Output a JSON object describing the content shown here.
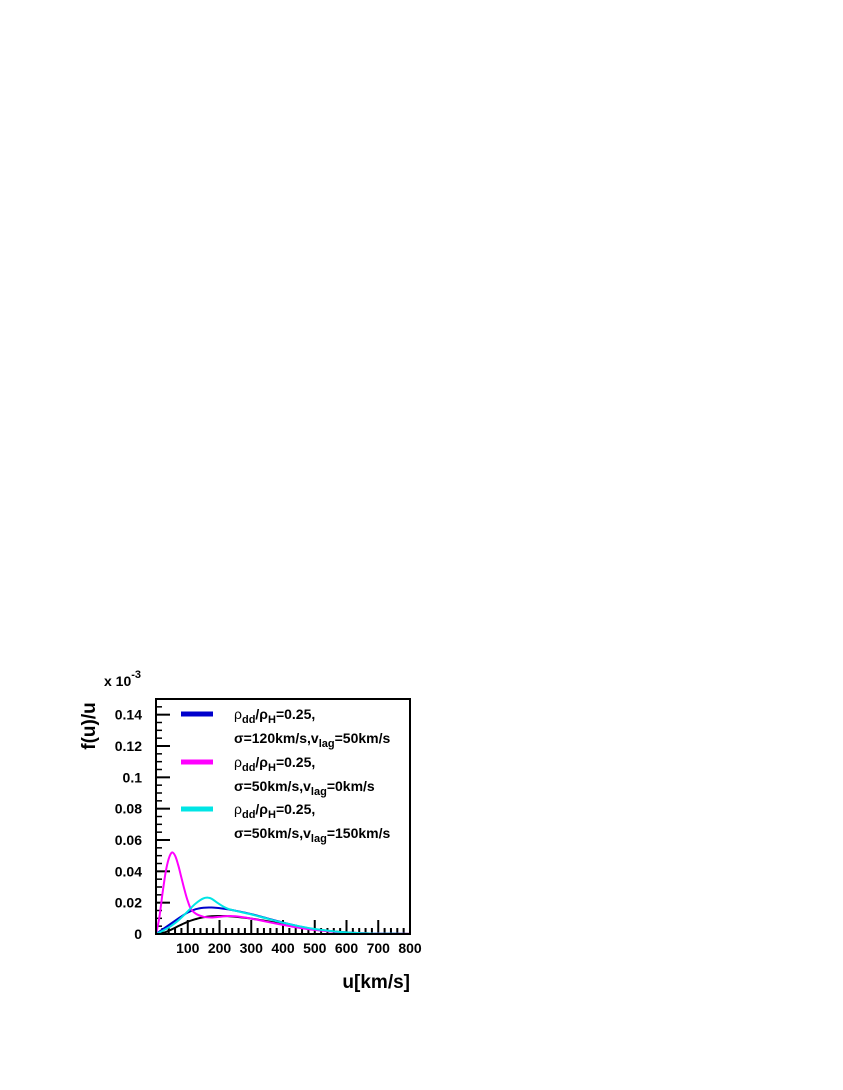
{
  "chart_data": {
    "type": "line",
    "title": "",
    "xlabel": "u[km/s]",
    "ylabel": "f(u)/u",
    "y_multiplier": "x 10",
    "y_multiplier_exp": "-3",
    "xlim": [
      0,
      800
    ],
    "ylim": [
      0,
      0.15
    ],
    "grid": false,
    "legend_position": "top",
    "x_ticks": [
      100,
      200,
      300,
      400,
      500,
      600,
      700,
      800
    ],
    "y_ticks": [
      0,
      0.02,
      0.04,
      0.06,
      0.08,
      0.1,
      0.12,
      0.14
    ],
    "y_tick_labels": [
      "0",
      "0.02",
      "0.04",
      "0.06",
      "0.08",
      "0.1",
      "0.12",
      "0.14"
    ],
    "series": [
      {
        "color": "#000000",
        "x": [
          0,
          25,
          50,
          75,
          100,
          125,
          150,
          175,
          200,
          225,
          250,
          300,
          350,
          400,
          450,
          500,
          550,
          600,
          650,
          700,
          750,
          800
        ],
        "y": [
          0,
          0.0008,
          0.003,
          0.0055,
          0.0078,
          0.0095,
          0.0107,
          0.0113,
          0.0115,
          0.0114,
          0.011,
          0.0098,
          0.0082,
          0.0064,
          0.0046,
          0.003,
          0.0018,
          0.001,
          0.0005,
          0.0002,
          0.0001,
          5e-05
        ]
      },
      {
        "legend": [
          "ρ",
          "dd",
          "/ρ",
          "H",
          "=0.25,",
          "σ=120km/s,v",
          "lag",
          "=50km/s"
        ],
        "color": "#0000cc",
        "x": [
          0,
          25,
          50,
          75,
          100,
          125,
          150,
          175,
          200,
          225,
          250,
          300,
          350,
          400,
          450,
          500,
          550,
          600,
          650,
          700,
          750,
          800
        ],
        "y": [
          0,
          0.0035,
          0.007,
          0.0105,
          0.0137,
          0.0158,
          0.0168,
          0.0169,
          0.0165,
          0.0158,
          0.0149,
          0.0127,
          0.01,
          0.0073,
          0.0049,
          0.003,
          0.0017,
          0.0009,
          0.0004,
          0.0002,
          0.0001,
          3e-05
        ]
      },
      {
        "legend": [
          "ρ",
          "dd",
          "/ρ",
          "H",
          "=0.25,",
          "σ=50km/s,v",
          "lag",
          "=0km/s"
        ],
        "color": "#ff00ff",
        "x": [
          0,
          10,
          20,
          30,
          40,
          50,
          60,
          70,
          80,
          90,
          100,
          110,
          125,
          150,
          175,
          200,
          225,
          250,
          300,
          350,
          400,
          450,
          500,
          550,
          600,
          700,
          800
        ],
        "y": [
          0,
          0.01,
          0.025,
          0.039,
          0.048,
          0.052,
          0.05,
          0.044,
          0.036,
          0.028,
          0.021,
          0.016,
          0.013,
          0.011,
          0.0105,
          0.011,
          0.0115,
          0.0113,
          0.0098,
          0.0078,
          0.0058,
          0.004,
          0.0026,
          0.0016,
          0.0009,
          0.0002,
          5e-05
        ]
      },
      {
        "legend": [
          "ρ",
          "dd",
          "/ρ",
          "H",
          "=0.25,",
          "σ=50km/s,v",
          "lag",
          "=150km/s"
        ],
        "color": "#00e5e5",
        "x": [
          0,
          25,
          50,
          75,
          100,
          125,
          150,
          165,
          175,
          200,
          225,
          250,
          300,
          350,
          400,
          450,
          500,
          550,
          600,
          650,
          700,
          750,
          800
        ],
        "y": [
          0,
          0.0025,
          0.0055,
          0.0095,
          0.0145,
          0.0195,
          0.0228,
          0.0232,
          0.0225,
          0.019,
          0.0162,
          0.0148,
          0.0125,
          0.0098,
          0.0072,
          0.005,
          0.0032,
          0.0019,
          0.001,
          0.0005,
          0.0002,
          0.0001,
          3e-05
        ]
      }
    ]
  }
}
